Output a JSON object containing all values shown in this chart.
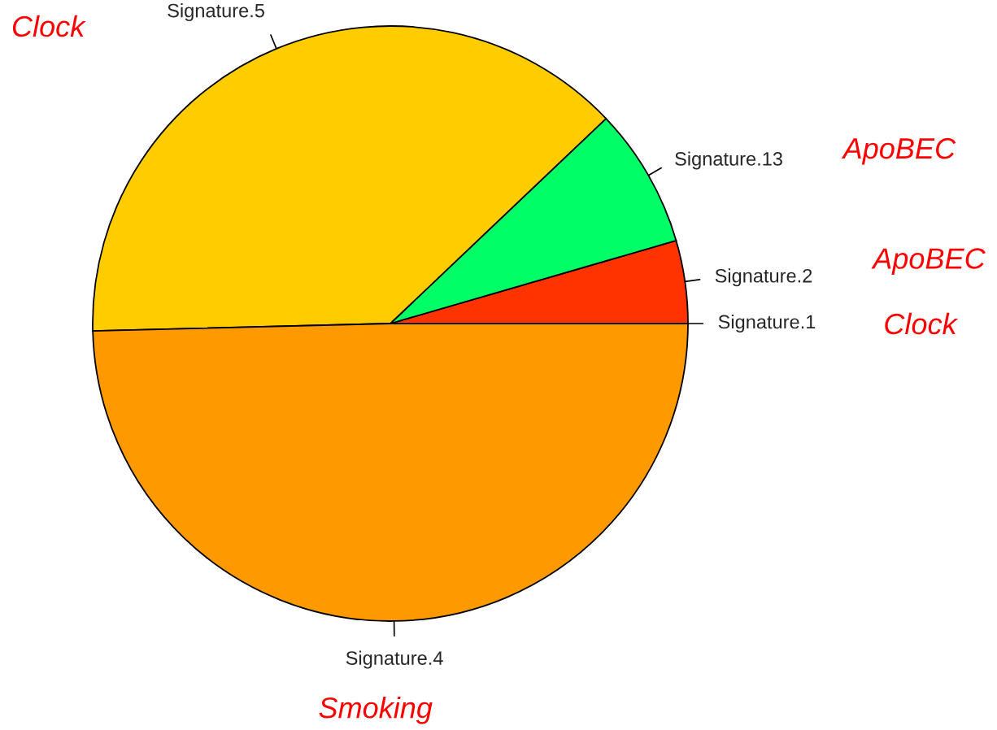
{
  "chart_data": {
    "type": "pie",
    "categories": [
      "Signature.1",
      "Signature.2",
      "Signature.13",
      "Signature.5",
      "Signature.4"
    ],
    "values": [
      0,
      4.5,
      7.6,
      38.3,
      49.6
    ],
    "colors": [
      "#ff0000",
      "#ff3300",
      "#00ff66",
      "#ffcc00",
      "#ff9900"
    ],
    "annotations": [
      "Clock",
      "ApoBEC",
      "ApoBEC",
      "Clock",
      "Smoking"
    ]
  }
}
